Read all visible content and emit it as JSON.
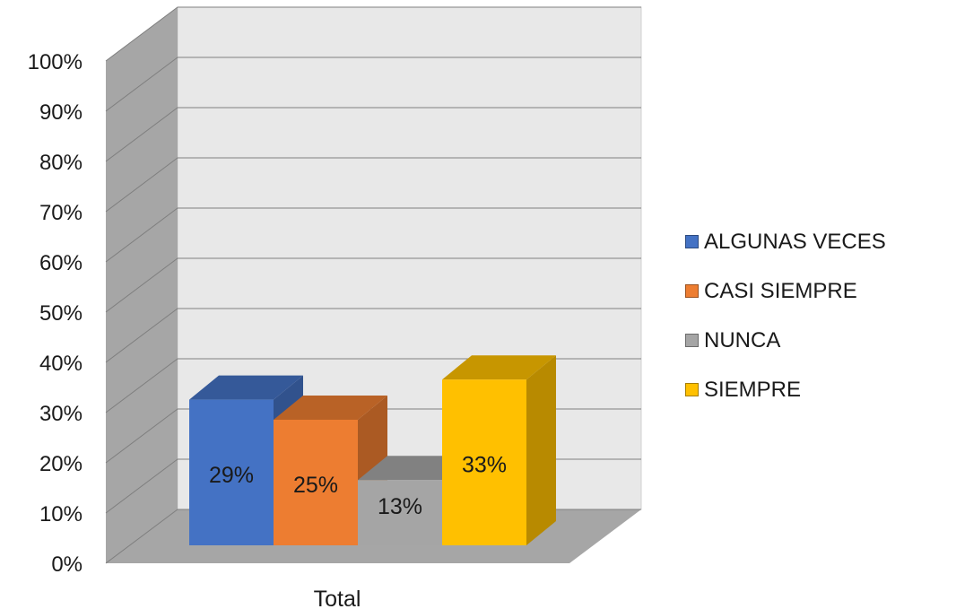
{
  "chart_data": {
    "type": "bar",
    "title": "",
    "xlabel": "",
    "ylabel": "",
    "categories": [
      "Total"
    ],
    "series": [
      {
        "name": "ALGUNAS VECES",
        "values": [
          29
        ],
        "label": "29%",
        "color": "#4472C4"
      },
      {
        "name": "CASI SIEMPRE",
        "values": [
          25
        ],
        "label": "25%",
        "color": "#ED7D31"
      },
      {
        "name": "NUNCA",
        "values": [
          13
        ],
        "label": "13%",
        "color": "#A5A5A5"
      },
      {
        "name": "SIEMPRE",
        "values": [
          33
        ],
        "label": "33%",
        "color": "#FFC000"
      }
    ],
    "ylim": [
      0,
      100
    ],
    "yticks": [
      "0%",
      "10%",
      "20%",
      "30%",
      "40%",
      "50%",
      "60%",
      "70%",
      "80%",
      "90%",
      "100%"
    ],
    "grid": true,
    "legend_position": "right",
    "style": "3d-column"
  }
}
